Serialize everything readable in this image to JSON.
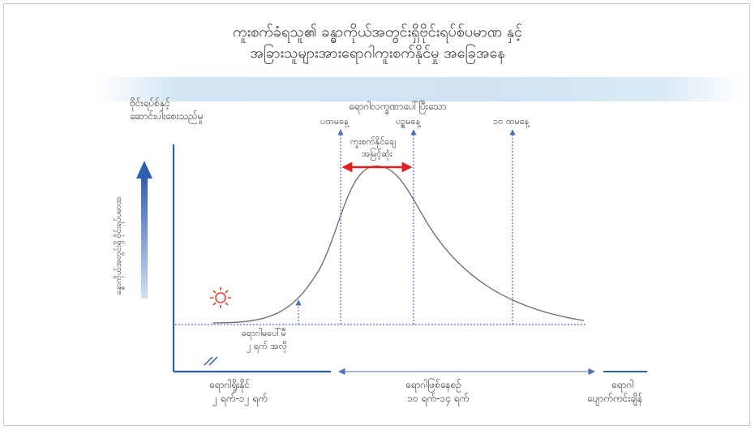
{
  "title": {
    "line1": "ကူးစက်ခံရသူ၏ ခန္ဓာကိုယ်အတွင်းရှိဗိုင်းရပ်စ်ပမာဏ နှင့်",
    "line2": "အခြားသူများအားရောဂါကူးစက်နိုင်မှု အခြေအနေ"
  },
  "labels": {
    "y_axis_title_1": "ဗိုင်းရပ်စ်နှင့်",
    "y_axis_title_2": "ဆောင်းပါးစေးသည်မှု",
    "y_vertical": "ခန္ဓာကိုယ်အတွင်းရှိ ဗိုင်းရပ်ပမာဏ",
    "symptom_period": "ရောဂါလက္ခဏာပေါ်ပြီးသော",
    "day1": "ပထမနေ့",
    "day5": "ပဉ္စမနေ့",
    "day10": "၁၀ ထမနေ့",
    "peak_1": "ကူးစက်နိုင်ချေ",
    "peak_2": "အမြင့်ဆုံး",
    "pre_symptom_1": "ရောဂါမပေါ်မီ",
    "pre_symptom_2": "၂ ရက် အလို",
    "incubation_1": "ရောဂါရှိုးနိုင်",
    "incubation_2": "၂ ရက်-၁၂ ရက်",
    "sickness_1": "ရောဂါဖြစ်နေစဉ်",
    "sickness_2": "၁၀ ရက်-၁၄ ရက်",
    "recovery_1": "ရောဂါ",
    "recovery_2": "ပျောက်ကင်းချိန်"
  },
  "colors": {
    "curve": "#6a6a6a",
    "axis": "#2f5fb3",
    "dotted": "#4d6fb8",
    "peak_arrow": "#e02020",
    "sun": "#e8452f",
    "band": "#d3e6f4"
  }
}
